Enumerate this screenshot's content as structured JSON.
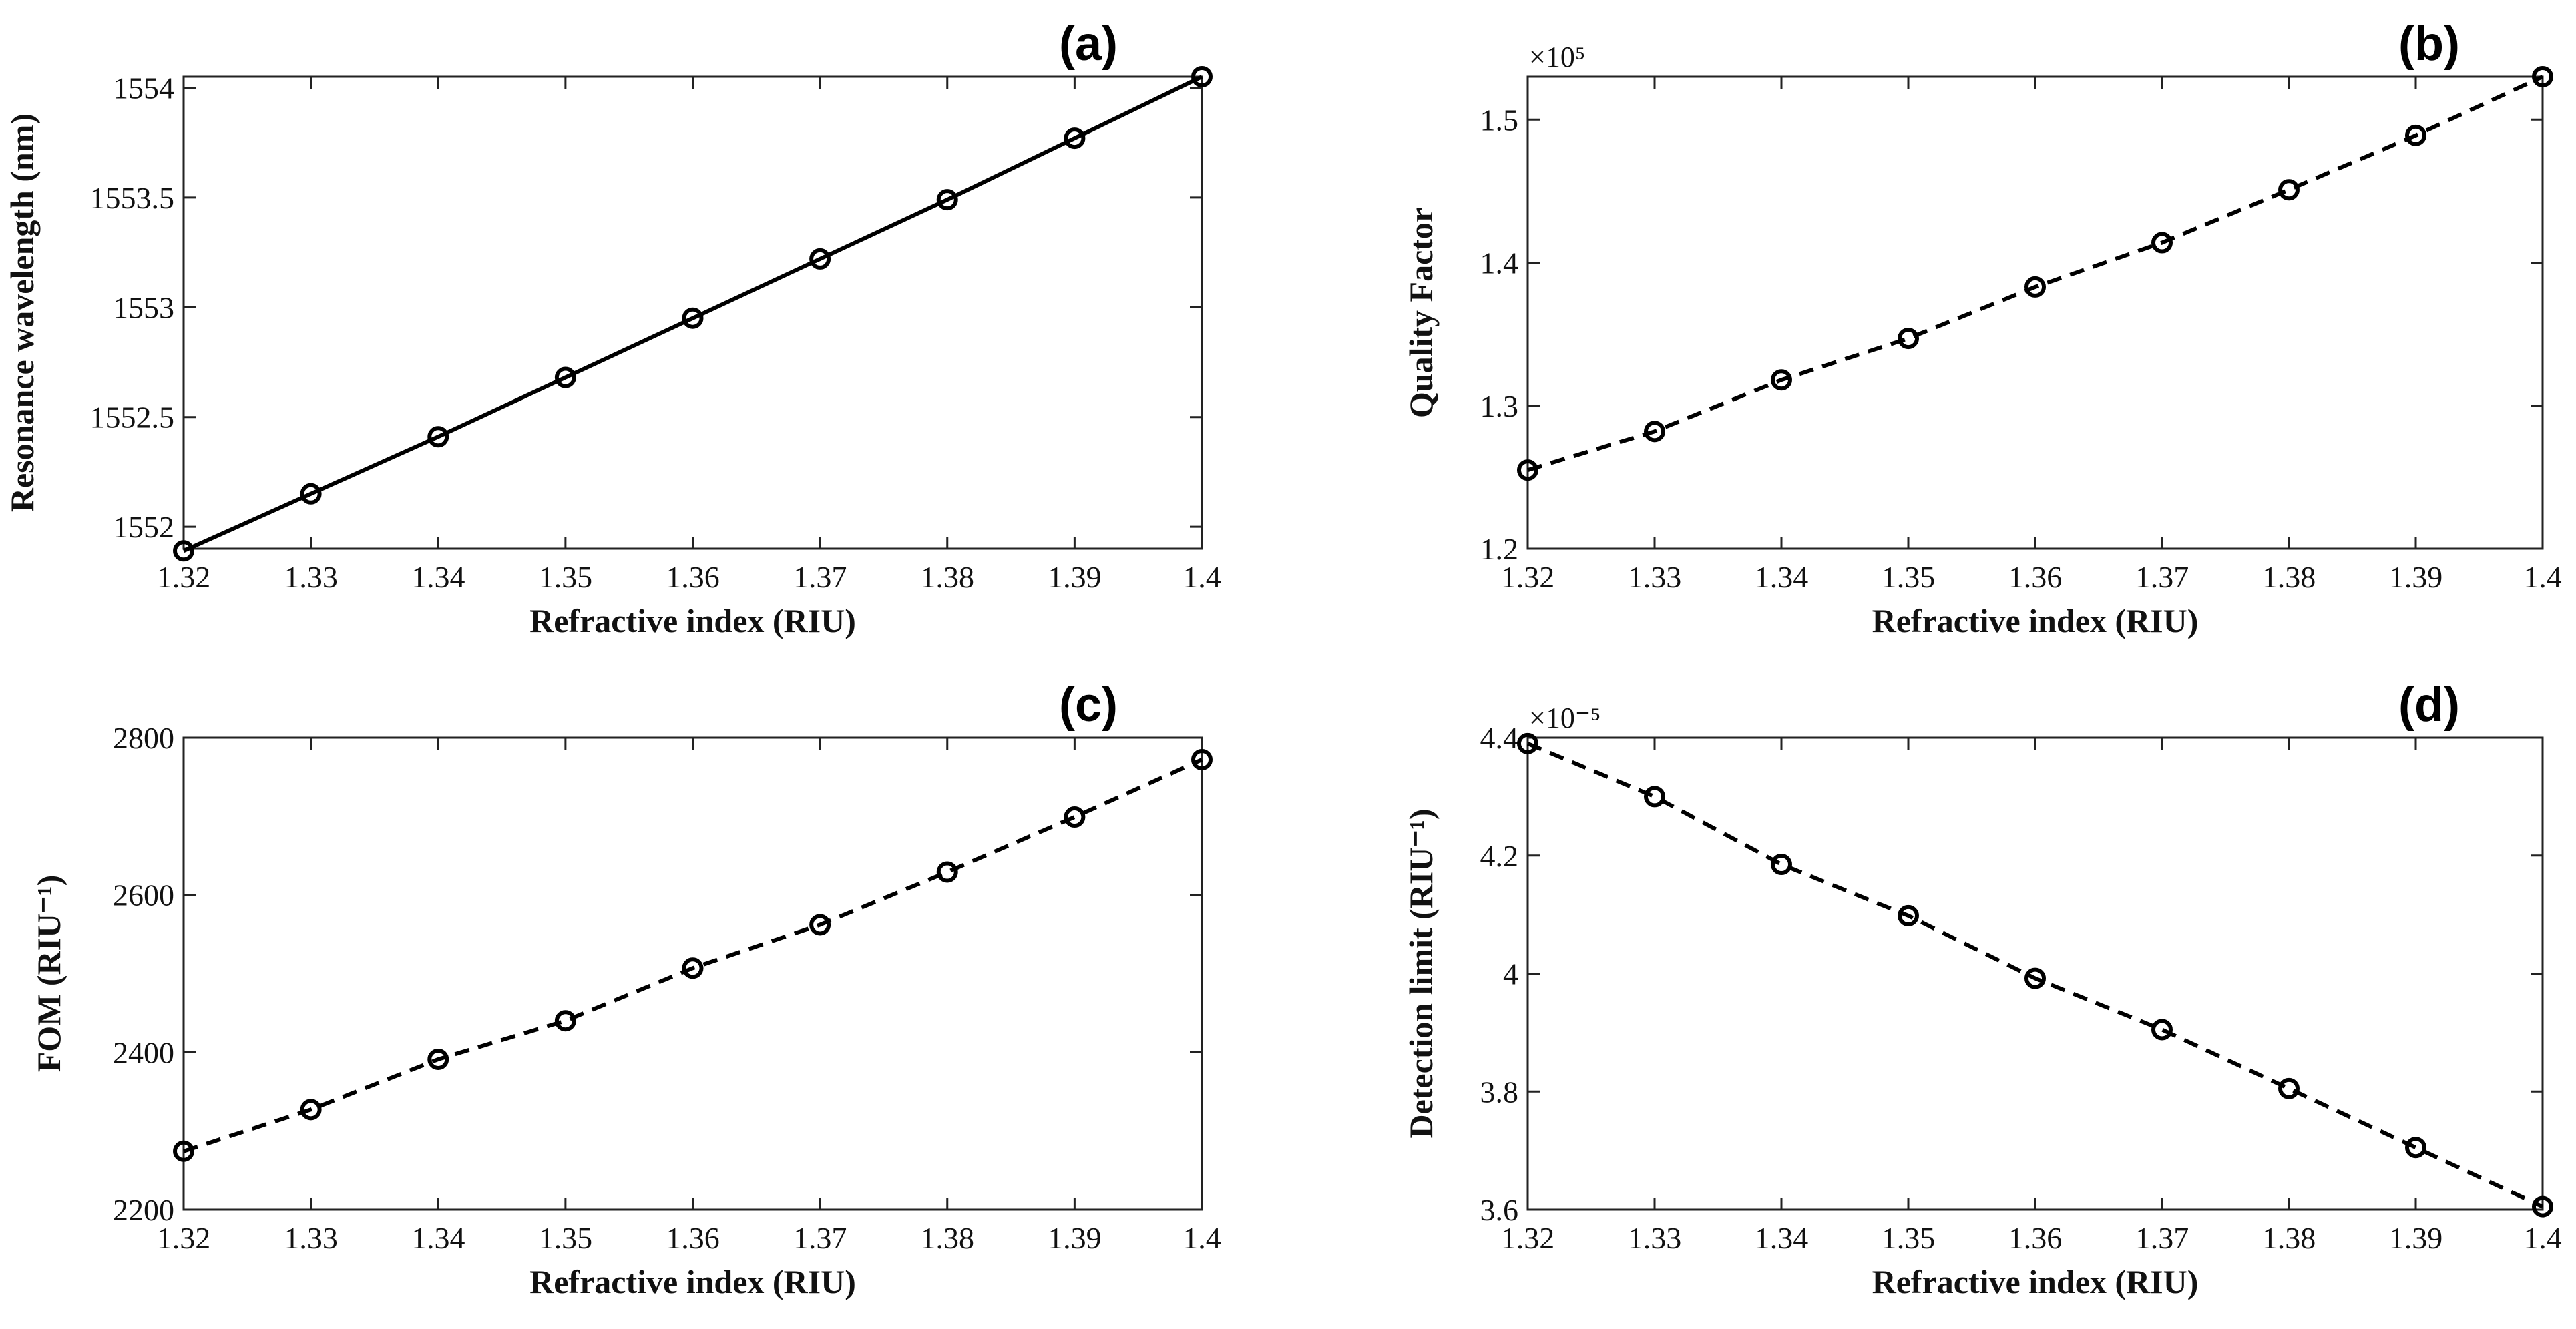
{
  "chart_data": [
    {
      "id": "a",
      "type": "line",
      "panel_label": "(a)",
      "xlabel": "Refractive index (RIU)",
      "ylabel": "Resonance wavelength (nm)",
      "xlim": [
        1.32,
        1.4
      ],
      "ylim": [
        1551.9,
        1554.05
      ],
      "xticks": [
        1.32,
        1.33,
        1.34,
        1.35,
        1.36,
        1.37,
        1.38,
        1.39,
        1.4
      ],
      "xtick_labels": [
        "1.32",
        "1.33",
        "1.34",
        "1.35",
        "1.36",
        "1.37",
        "1.38",
        "1.39",
        "1.4"
      ],
      "yticks": [
        1552,
        1552.5,
        1553,
        1553.5,
        1554
      ],
      "ytick_labels": [
        "1552",
        "1552.5",
        "1553",
        "1553.5",
        "1554"
      ],
      "line_style": "solid",
      "marker": "circle",
      "series": [
        {
          "name": "Resonance wavelength",
          "x": [
            1.32,
            1.33,
            1.34,
            1.35,
            1.36,
            1.37,
            1.38,
            1.39,
            1.4
          ],
          "y": [
            1551.89,
            1552.15,
            1552.41,
            1552.68,
            1552.95,
            1553.22,
            1553.49,
            1553.77,
            1554.05
          ]
        }
      ]
    },
    {
      "id": "b",
      "type": "line",
      "panel_label": "(b)",
      "xlabel": "Refractive index (RIU)",
      "ylabel": "Quality Factor",
      "exponent_label": "×10⁵",
      "xlim": [
        1.32,
        1.4
      ],
      "ylim": [
        1.2,
        1.53
      ],
      "xticks": [
        1.32,
        1.33,
        1.34,
        1.35,
        1.36,
        1.37,
        1.38,
        1.39,
        1.4
      ],
      "xtick_labels": [
        "1.32",
        "1.33",
        "1.34",
        "1.35",
        "1.36",
        "1.37",
        "1.38",
        "1.39",
        "1.4"
      ],
      "yticks": [
        1.2,
        1.3,
        1.4,
        1.5
      ],
      "ytick_labels": [
        "1.2",
        "1.3",
        "1.4",
        "1.5"
      ],
      "line_style": "dashed",
      "marker": "circle",
      "series": [
        {
          "name": "Quality Factor",
          "x": [
            1.32,
            1.33,
            1.34,
            1.35,
            1.36,
            1.37,
            1.38,
            1.39,
            1.4
          ],
          "y": [
            1.255,
            1.282,
            1.318,
            1.347,
            1.383,
            1.414,
            1.451,
            1.489,
            1.53
          ]
        }
      ]
    },
    {
      "id": "c",
      "type": "line",
      "panel_label": "(c)",
      "xlabel": "Refractive index (RIU)",
      "ylabel": "FOM (RIU⁻¹)",
      "xlim": [
        1.32,
        1.4
      ],
      "ylim": [
        2200,
        2800
      ],
      "xticks": [
        1.32,
        1.33,
        1.34,
        1.35,
        1.36,
        1.37,
        1.38,
        1.39,
        1.4
      ],
      "xtick_labels": [
        "1.32",
        "1.33",
        "1.34",
        "1.35",
        "1.36",
        "1.37",
        "1.38",
        "1.39",
        "1.4"
      ],
      "yticks": [
        2200,
        2400,
        2600,
        2800
      ],
      "ytick_labels": [
        "2200",
        "2400",
        "2600",
        "2800"
      ],
      "line_style": "dashed",
      "marker": "circle",
      "series": [
        {
          "name": "FOM",
          "x": [
            1.32,
            1.33,
            1.34,
            1.35,
            1.36,
            1.37,
            1.38,
            1.39,
            1.4
          ],
          "y": [
            2274,
            2327,
            2391,
            2440,
            2507,
            2562,
            2629,
            2699,
            2772
          ]
        }
      ]
    },
    {
      "id": "d",
      "type": "line",
      "panel_label": "(d)",
      "xlabel": "Refractive index (RIU)",
      "ylabel": "Detection limit (RIU⁻¹)",
      "exponent_label": "×10⁻⁵",
      "xlim": [
        1.32,
        1.4
      ],
      "ylim": [
        3.6,
        4.4
      ],
      "xticks": [
        1.32,
        1.33,
        1.34,
        1.35,
        1.36,
        1.37,
        1.38,
        1.39,
        1.4
      ],
      "xtick_labels": [
        "1.32",
        "1.33",
        "1.34",
        "1.35",
        "1.36",
        "1.37",
        "1.38",
        "1.39",
        "1.4"
      ],
      "yticks": [
        3.6,
        3.8,
        4.0,
        4.2,
        4.4
      ],
      "ytick_labels": [
        "3.6",
        "3.8",
        "4",
        "4.2",
        "4.4"
      ],
      "line_style": "dashed",
      "marker": "circle",
      "series": [
        {
          "name": "Detection limit",
          "x": [
            1.32,
            1.33,
            1.34,
            1.35,
            1.36,
            1.37,
            1.38,
            1.39,
            1.4
          ],
          "y": [
            4.39,
            4.3,
            4.185,
            4.098,
            3.992,
            3.905,
            3.805,
            3.705,
            3.605
          ]
        }
      ]
    }
  ]
}
